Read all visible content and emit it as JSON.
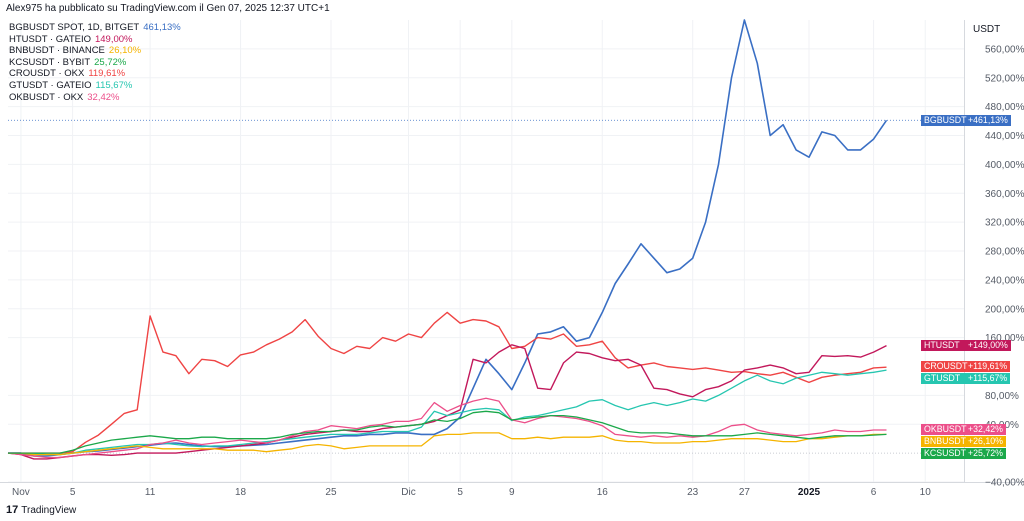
{
  "header": {
    "published": "Alex975 ha pubblicato su TradingView.com il Gen 07, 2025 12:37 UTC+1",
    "unit": "USDT",
    "brand": "TradingView"
  },
  "legend": [
    {
      "name": "BGBUSDT SPOT, 1D, BITGET",
      "value": "461,13%",
      "color": "#3a6fc4"
    },
    {
      "name": "HTUSDT · GATEIO",
      "value": "149,00%",
      "color": "#c2185b"
    },
    {
      "name": "BNBUSDT · BINANCE",
      "value": "26,10%",
      "color": "#f5b400"
    },
    {
      "name": "KCSUSDT · BYBIT",
      "value": "25,72%",
      "color": "#1ba84a"
    },
    {
      "name": "CROUSDT · OKX",
      "value": "119,61%",
      "color": "#ef4444"
    },
    {
      "name": "GTUSDT · GATEIO",
      "value": "115,67%",
      "color": "#26c6b0"
    },
    {
      "name": "OKBUSDT · OKX",
      "value": "32,42%",
      "color": "#ec4f8a"
    }
  ],
  "price_tags": [
    {
      "name": "BGBUSDT",
      "value": "+461,13%",
      "color": "#3a6fc4",
      "y": 461.13
    },
    {
      "name": "HTUSDT",
      "value": "+149,00%",
      "color": "#c2185b",
      "y": 149
    },
    {
      "name": "CROUSDT",
      "value": "+119,61%",
      "color": "#ef4444",
      "y": 119.61
    },
    {
      "name": "GTUSDT",
      "value": "+115,67%",
      "color": "#26c6b0",
      "y": 103
    },
    {
      "name": "OKBUSDT",
      "value": "+32,42%",
      "color": "#ec4f8a",
      "y": 32.42
    },
    {
      "name": "BNBUSDT",
      "value": "+26,10%",
      "color": "#f5b400",
      "y": 16
    },
    {
      "name": "KCSUSDT",
      "value": "+25,72%",
      "color": "#1ba84a",
      "y": 0
    }
  ],
  "chart_data": {
    "type": "line",
    "ylim": [
      -40,
      600
    ],
    "xlim": [
      -1,
      73
    ],
    "y_ticks": [
      {
        "v": 560,
        "label": "560,00%"
      },
      {
        "v": 520,
        "label": "520,00%"
      },
      {
        "v": 480,
        "label": "480,00%"
      },
      {
        "v": 440,
        "label": "440,00%"
      },
      {
        "v": 400,
        "label": "400,00%"
      },
      {
        "v": 360,
        "label": "360,00%"
      },
      {
        "v": 320,
        "label": "320,00%"
      },
      {
        "v": 280,
        "label": "280,00%"
      },
      {
        "v": 240,
        "label": "240,00%"
      },
      {
        "v": 200,
        "label": "200,00%"
      },
      {
        "v": 160,
        "label": "160,00%"
      },
      {
        "v": 80,
        "label": "80,00%"
      },
      {
        "v": 40,
        "label": "40,00%"
      },
      {
        "v": -40,
        "label": "−40,00%"
      }
    ],
    "x_ticks": [
      {
        "x": 0,
        "label": "Nov"
      },
      {
        "x": 4,
        "label": "5"
      },
      {
        "x": 10,
        "label": "11"
      },
      {
        "x": 17,
        "label": "18"
      },
      {
        "x": 24,
        "label": "25"
      },
      {
        "x": 30,
        "label": "Dic"
      },
      {
        "x": 34,
        "label": "5"
      },
      {
        "x": 38,
        "label": "9"
      },
      {
        "x": 45,
        "label": "16"
      },
      {
        "x": 52,
        "label": "23"
      },
      {
        "x": 56,
        "label": "27"
      },
      {
        "x": 61,
        "label": "2025",
        "bold": true
      },
      {
        "x": 66,
        "label": "6"
      },
      {
        "x": 70,
        "label": "10"
      }
    ],
    "series": [
      {
        "name": "BGBUSDT",
        "color": "#3a6fc4",
        "width": 1.6,
        "x": [
          -1,
          0,
          1,
          2,
          3,
          4,
          5,
          6,
          7,
          8,
          9,
          10,
          11,
          12,
          13,
          14,
          15,
          16,
          17,
          18,
          19,
          20,
          21,
          22,
          23,
          24,
          25,
          26,
          27,
          28,
          29,
          30,
          31,
          32,
          33,
          34,
          35,
          36,
          37,
          38,
          39,
          40,
          41,
          42,
          43,
          44,
          45,
          46,
          47,
          48,
          49,
          50,
          51,
          52,
          53,
          54,
          55,
          56,
          57,
          58,
          59,
          60,
          61,
          62,
          63,
          64,
          65,
          66,
          67
        ],
        "y": [
          0,
          0,
          -4,
          -4,
          -2,
          0,
          2,
          3,
          5,
          7,
          9,
          11,
          13,
          14,
          12,
          10,
          9,
          9,
          10,
          11,
          12,
          14,
          16,
          18,
          20,
          22,
          24,
          24,
          26,
          26,
          28,
          28,
          26,
          26,
          34,
          50,
          90,
          130,
          110,
          88,
          125,
          165,
          168,
          175,
          155,
          160,
          195,
          235,
          262,
          290,
          270,
          250,
          255,
          270,
          320,
          400,
          520,
          600,
          540,
          440,
          455,
          420,
          410,
          445,
          440,
          420,
          420,
          435,
          461
        ]
      },
      {
        "name": "CROUSDT",
        "color": "#ef4444",
        "width": 1.4,
        "x": [
          -1,
          0,
          1,
          2,
          3,
          4,
          5,
          6,
          7,
          8,
          9,
          10,
          11,
          12,
          13,
          14,
          15,
          16,
          17,
          18,
          19,
          20,
          21,
          22,
          23,
          24,
          25,
          26,
          27,
          28,
          29,
          30,
          31,
          32,
          33,
          34,
          35,
          36,
          37,
          38,
          39,
          40,
          41,
          42,
          43,
          44,
          45,
          46,
          47,
          48,
          49,
          50,
          51,
          52,
          53,
          54,
          55,
          56,
          57,
          58,
          59,
          60,
          61,
          62,
          63,
          64,
          65,
          66,
          67
        ],
        "y": [
          0,
          0,
          0,
          0,
          0,
          2,
          15,
          25,
          40,
          55,
          60,
          190,
          140,
          135,
          110,
          130,
          128,
          120,
          136,
          140,
          150,
          158,
          168,
          185,
          162,
          145,
          138,
          148,
          145,
          160,
          155,
          165,
          160,
          180,
          195,
          180,
          185,
          183,
          175,
          145,
          148,
          160,
          158,
          165,
          148,
          150,
          155,
          132,
          118,
          122,
          125,
          120,
          118,
          116,
          118,
          115,
          112,
          113,
          110,
          108,
          112,
          105,
          98,
          105,
          108,
          110,
          112,
          118,
          119
        ]
      },
      {
        "name": "HTUSDT",
        "color": "#c2185b",
        "width": 1.4,
        "x": [
          -1,
          0,
          1,
          2,
          3,
          4,
          5,
          6,
          7,
          8,
          9,
          10,
          11,
          12,
          13,
          14,
          15,
          16,
          17,
          18,
          19,
          20,
          21,
          22,
          23,
          24,
          25,
          26,
          27,
          28,
          29,
          30,
          31,
          32,
          33,
          34,
          35,
          36,
          37,
          38,
          39,
          40,
          41,
          42,
          43,
          44,
          45,
          46,
          47,
          48,
          49,
          50,
          51,
          52,
          53,
          54,
          55,
          56,
          57,
          58,
          59,
          60,
          61,
          62,
          63,
          64,
          65,
          66,
          67
        ],
        "y": [
          0,
          -2,
          -8,
          -8,
          -6,
          -4,
          -2,
          -2,
          -3,
          -2,
          0,
          0,
          0,
          0,
          2,
          4,
          6,
          8,
          10,
          12,
          14,
          18,
          22,
          26,
          28,
          30,
          32,
          30,
          30,
          34,
          36,
          38,
          40,
          44,
          52,
          60,
          130,
          125,
          140,
          150,
          145,
          90,
          88,
          125,
          140,
          138,
          132,
          128,
          130,
          122,
          90,
          88,
          82,
          78,
          88,
          92,
          100,
          115,
          118,
          122,
          118,
          110,
          112,
          135,
          134,
          135,
          133,
          140,
          149
        ]
      },
      {
        "name": "GTUSDT",
        "color": "#26c6b0",
        "width": 1.3,
        "x": [
          -1,
          0,
          1,
          2,
          3,
          4,
          5,
          6,
          7,
          8,
          9,
          10,
          11,
          12,
          13,
          14,
          15,
          16,
          17,
          18,
          19,
          20,
          21,
          22,
          23,
          24,
          25,
          26,
          27,
          28,
          29,
          30,
          31,
          32,
          33,
          34,
          35,
          36,
          37,
          38,
          39,
          40,
          41,
          42,
          43,
          44,
          45,
          46,
          47,
          48,
          49,
          50,
          51,
          52,
          53,
          54,
          55,
          56,
          57,
          58,
          59,
          60,
          61,
          62,
          63,
          64,
          65,
          66,
          67
        ],
        "y": [
          0,
          0,
          0,
          -2,
          -2,
          0,
          4,
          6,
          8,
          10,
          12,
          12,
          14,
          12,
          10,
          9,
          10,
          10,
          12,
          14,
          16,
          18,
          20,
          22,
          24,
          26,
          26,
          26,
          28,
          30,
          30,
          30,
          36,
          58,
          52,
          56,
          60,
          62,
          60,
          45,
          50,
          52,
          56,
          60,
          64,
          72,
          74,
          66,
          60,
          66,
          70,
          66,
          70,
          75,
          72,
          80,
          90,
          100,
          108,
          100,
          96,
          104,
          108,
          112,
          110,
          108,
          110,
          112,
          115
        ]
      },
      {
        "name": "OKBUSDT",
        "color": "#ec4f8a",
        "width": 1.3,
        "x": [
          -1,
          0,
          1,
          2,
          3,
          4,
          5,
          6,
          7,
          8,
          9,
          10,
          11,
          12,
          13,
          14,
          15,
          16,
          17,
          18,
          19,
          20,
          21,
          22,
          23,
          24,
          25,
          26,
          27,
          28,
          29,
          30,
          31,
          32,
          33,
          34,
          35,
          36,
          37,
          38,
          39,
          40,
          41,
          42,
          43,
          44,
          45,
          46,
          47,
          48,
          49,
          50,
          51,
          52,
          53,
          54,
          55,
          56,
          57,
          58,
          59,
          60,
          61,
          62,
          63,
          64,
          65,
          66,
          67
        ],
        "y": [
          0,
          -2,
          -4,
          -6,
          -6,
          -4,
          -2,
          0,
          2,
          4,
          6,
          12,
          14,
          18,
          14,
          12,
          14,
          16,
          18,
          16,
          14,
          18,
          24,
          30,
          32,
          38,
          36,
          34,
          38,
          40,
          44,
          44,
          48,
          70,
          58,
          66,
          72,
          76,
          72,
          46,
          42,
          48,
          52,
          50,
          48,
          44,
          38,
          26,
          24,
          22,
          24,
          22,
          24,
          22,
          24,
          30,
          38,
          40,
          32,
          28,
          26,
          24,
          26,
          28,
          32,
          30,
          30,
          32,
          32
        ]
      },
      {
        "name": "BNBUSDT",
        "color": "#f5b400",
        "width": 1.3,
        "x": [
          -1,
          0,
          1,
          2,
          3,
          4,
          5,
          6,
          7,
          8,
          9,
          10,
          11,
          12,
          13,
          14,
          15,
          16,
          17,
          18,
          19,
          20,
          21,
          22,
          23,
          24,
          25,
          26,
          27,
          28,
          29,
          30,
          31,
          32,
          33,
          34,
          35,
          36,
          37,
          38,
          39,
          40,
          41,
          42,
          43,
          44,
          45,
          46,
          47,
          48,
          49,
          50,
          51,
          52,
          53,
          54,
          55,
          56,
          57,
          58,
          59,
          60,
          61,
          62,
          63,
          64,
          65,
          66,
          67
        ],
        "y": [
          0,
          0,
          -2,
          -2,
          -2,
          0,
          2,
          4,
          6,
          8,
          10,
          8,
          6,
          6,
          6,
          6,
          6,
          4,
          4,
          4,
          2,
          4,
          6,
          10,
          12,
          10,
          6,
          8,
          10,
          10,
          10,
          10,
          10,
          24,
          26,
          26,
          28,
          28,
          28,
          20,
          20,
          22,
          20,
          22,
          22,
          22,
          24,
          18,
          16,
          16,
          14,
          14,
          14,
          16,
          16,
          18,
          20,
          20,
          20,
          18,
          16,
          16,
          20,
          20,
          22,
          24,
          24,
          26,
          26
        ]
      },
      {
        "name": "KCSUSDT",
        "color": "#1ba84a",
        "width": 1.3,
        "x": [
          -1,
          0,
          1,
          2,
          3,
          4,
          5,
          6,
          7,
          8,
          9,
          10,
          11,
          12,
          13,
          14,
          15,
          16,
          17,
          18,
          19,
          20,
          21,
          22,
          23,
          24,
          25,
          26,
          27,
          28,
          29,
          30,
          31,
          32,
          33,
          34,
          35,
          36,
          37,
          38,
          39,
          40,
          41,
          42,
          43,
          44,
          45,
          46,
          47,
          48,
          49,
          50,
          51,
          52,
          53,
          54,
          55,
          56,
          57,
          58,
          59,
          60,
          61,
          62,
          63,
          64,
          65,
          66,
          67
        ],
        "y": [
          0,
          0,
          0,
          0,
          0,
          4,
          10,
          14,
          18,
          20,
          22,
          24,
          22,
          20,
          20,
          22,
          22,
          20,
          20,
          20,
          20,
          22,
          26,
          28,
          30,
          30,
          32,
          32,
          36,
          38,
          36,
          38,
          40,
          46,
          44,
          48,
          56,
          58,
          56,
          46,
          48,
          50,
          52,
          52,
          50,
          46,
          42,
          36,
          30,
          28,
          28,
          28,
          26,
          24,
          24,
          24,
          24,
          26,
          28,
          26,
          24,
          22,
          20,
          22,
          24,
          24,
          24,
          25,
          26
        ]
      }
    ]
  }
}
